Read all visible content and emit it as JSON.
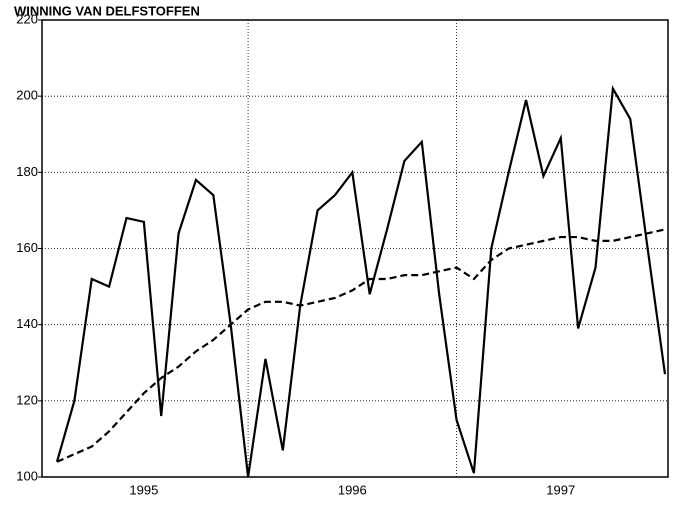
{
  "chart_data": {
    "type": "line",
    "title": "WINNING VAN DELFSTOFFEN",
    "categories": [
      null,
      null,
      null,
      null,
      null,
      "1995",
      null,
      null,
      null,
      null,
      null,
      null,
      null,
      null,
      null,
      null,
      null,
      "1996",
      null,
      null,
      null,
      null,
      null,
      null,
      null,
      null,
      null,
      null,
      null,
      "1997",
      null,
      null,
      null,
      null,
      null,
      null
    ],
    "series": [
      {
        "name": null,
        "color": "#000000",
        "dash": false,
        "values": [
          104,
          120,
          152,
          150,
          168,
          167,
          116,
          164,
          178,
          174,
          140,
          100,
          131,
          107,
          145,
          170,
          174,
          180,
          148,
          165,
          183,
          188,
          148,
          115,
          101,
          160,
          180,
          199,
          179,
          189,
          139,
          155,
          202,
          194,
          160,
          127
        ]
      },
      {
        "name": null,
        "color": "#000000",
        "dash": true,
        "values": [
          104,
          106,
          108,
          112,
          117,
          122,
          126,
          129,
          133,
          136,
          140,
          144,
          146,
          146,
          145,
          146,
          147,
          149,
          152,
          152,
          153,
          153,
          154,
          155,
          152,
          157,
          160,
          161,
          162,
          163,
          163,
          162,
          162,
          163,
          164,
          165
        ]
      }
    ],
    "ylim": [
      100,
      220
    ],
    "yticks": [
      100,
      120,
      140,
      160,
      180,
      200,
      220
    ],
    "grid": true
  }
}
